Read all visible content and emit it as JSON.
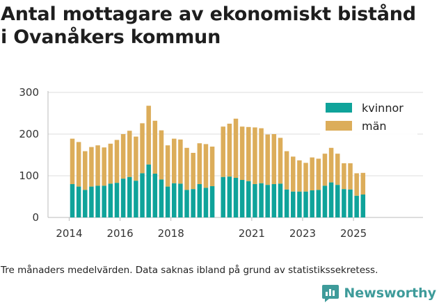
{
  "header": {
    "title_line1": "Antal mottagare av ekonomiskt bistånd",
    "title_line2": "i Ovanåkers kommun"
  },
  "footer": {
    "note": "Tre månaders medelvärden. Data saknas ibland på grund av statistikssekretess.",
    "brand": "Newsworthy"
  },
  "colors": {
    "kvinnor": "#0fa39a",
    "man": "#dcad5a",
    "grid": "#dddddd",
    "brand": "#3e9b9a"
  },
  "chart_data": {
    "type": "bar",
    "stacked": true,
    "title": "Antal mottagare av ekonomiskt bistånd i Ovanåkers kommun",
    "xlabel": "",
    "ylabel": "",
    "ylim": [
      0,
      300
    ],
    "yticks": [
      0,
      100,
      200,
      300
    ],
    "xticks": [
      {
        "label": "2014",
        "index": -0.5
      },
      {
        "label": "2016",
        "index": 7.5
      },
      {
        "label": "2018",
        "index": 15.5
      },
      {
        "label": "2021",
        "index": 27.5
      },
      {
        "label": "2023",
        "index": 35.5
      },
      {
        "label": "2025",
        "index": 43.5
      }
    ],
    "legend": {
      "position": "top-right"
    },
    "gaps_after_index": [
      22
    ],
    "series": [
      {
        "name": "kvinnor",
        "values": [
          80,
          74,
          66,
          74,
          76,
          76,
          81,
          83,
          93,
          97,
          88,
          106,
          127,
          105,
          91,
          74,
          82,
          81,
          66,
          68,
          80,
          71,
          75,
          97,
          98,
          95,
          90,
          87,
          80,
          82,
          78,
          80,
          81,
          67,
          62,
          62,
          62,
          65,
          66,
          76,
          84,
          78,
          68,
          67,
          52,
          55
        ]
      },
      {
        "name": "män",
        "values": [
          109,
          107,
          93,
          95,
          97,
          92,
          96,
          103,
          107,
          111,
          106,
          120,
          141,
          127,
          118,
          99,
          107,
          106,
          101,
          87,
          98,
          105,
          95,
          121,
          127,
          142,
          128,
          130,
          136,
          132,
          121,
          120,
          110,
          92,
          84,
          75,
          69,
          79,
          75,
          77,
          83,
          75,
          62,
          63,
          54,
          52
        ]
      }
    ]
  }
}
